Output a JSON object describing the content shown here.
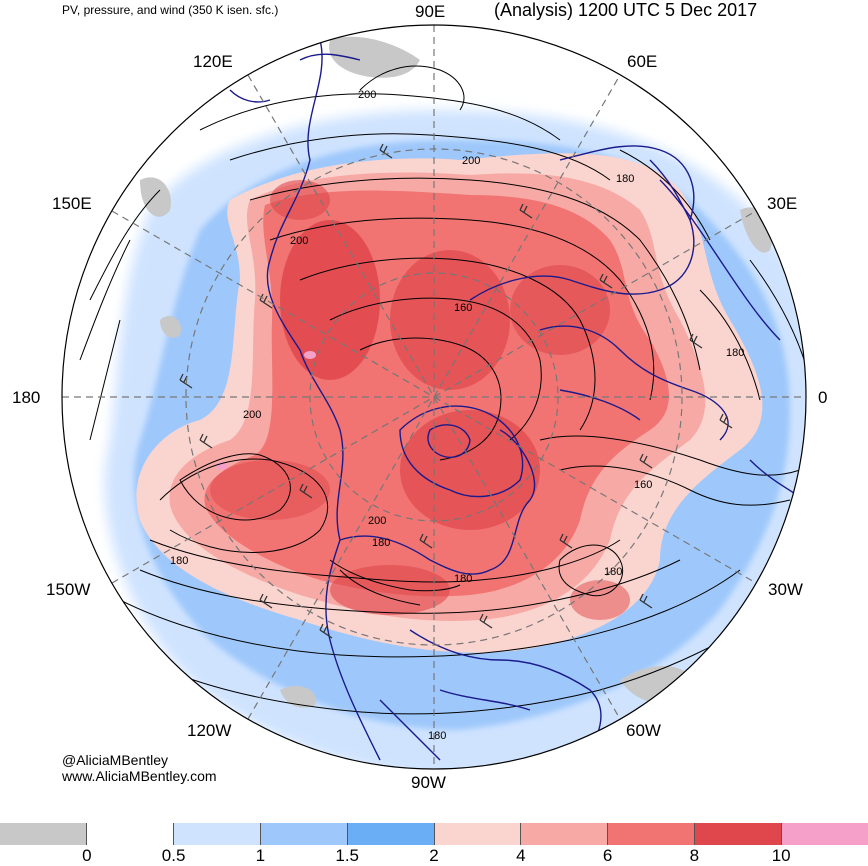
{
  "title": {
    "left": "PV, pressure, and wind (350 K isen. sfc.)",
    "right": "(Analysis) 1200 UTC 5 Dec 2017"
  },
  "longitude_labels": {
    "e90": "90E",
    "e120": "120E",
    "e60": "60E",
    "e150": "150E",
    "e30": "30E",
    "d180": "180",
    "d0": "0",
    "w150": "150W",
    "w30": "30W",
    "w120": "120W",
    "w60": "60W",
    "w90": "90W"
  },
  "contour_labels": [
    "200",
    "200",
    "180",
    "200",
    "160",
    "200",
    "180",
    "160",
    "200",
    "180",
    "180",
    "180",
    "180",
    "180"
  ],
  "credit": {
    "handle": "@AliciaMBentley",
    "site": "www.AliciaMBentley.com"
  },
  "colorbar": {
    "colors": [
      "#c8c8c8",
      "#ffffff",
      "#cfe3ff",
      "#9ec8fb",
      "#6aaef5",
      "#fad4cf",
      "#f7aaa5",
      "#f17472",
      "#e0474c",
      "#f5a0c8"
    ],
    "labels": [
      "0",
      "0.5",
      "1",
      "1.5",
      "2",
      "4",
      "6",
      "8",
      "10"
    ]
  }
}
